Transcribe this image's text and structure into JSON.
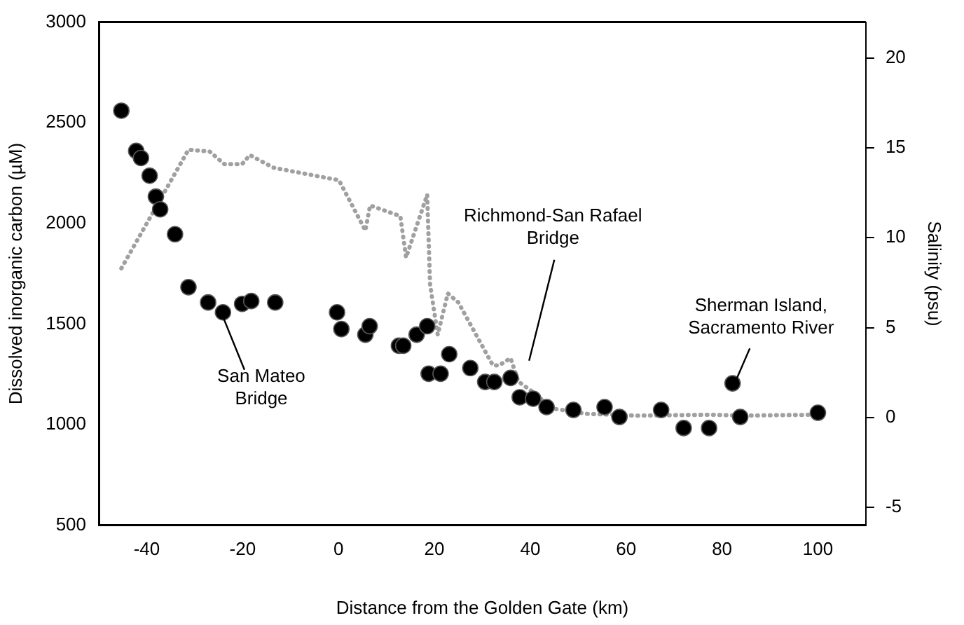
{
  "chart_data": {
    "type": "scatter",
    "xlabel": "Distance from the Golden Gate (km)",
    "ylabel": "Dissolved inorganic carbon (µM)",
    "y2label": "Salinity (psu)",
    "xlim": [
      -50,
      110
    ],
    "xticks": [
      -40,
      -20,
      0,
      20,
      40,
      60,
      80,
      100
    ],
    "ylim": [
      500,
      3000
    ],
    "yticks": [
      500,
      1000,
      1500,
      2000,
      2500,
      3000
    ],
    "y2lim": [
      -6,
      22
    ],
    "y2ticks": [
      -5,
      0,
      5,
      10,
      15,
      20
    ],
    "grid": false,
    "legend": false,
    "series": [
      {
        "type": "scatter",
        "color": "#000000",
        "marker": "circle",
        "x": [
          -45.3,
          -42.2,
          -41.2,
          -39.4,
          -38.1,
          -37.2,
          -34.1,
          -31.3,
          -27.2,
          -24.1,
          -20.1,
          -18.2,
          -13.2,
          -0.3,
          0.6,
          5.6,
          6.5,
          12.6,
          13.5,
          16.3,
          18.5,
          18.8,
          21.3,
          23.1,
          27.5,
          30.6,
          32.5,
          35.9,
          37.8,
          40.6,
          43.4,
          49,
          55.5,
          58.6,
          67.3,
          72,
          77.3,
          82.2,
          83.8,
          100
        ],
        "values": [
          2560,
          2360,
          2325,
          2237,
          2133,
          2070,
          1946,
          1683,
          1607,
          1558,
          1600,
          1614,
          1607,
          1558,
          1475,
          1447,
          1489,
          1392,
          1392,
          1447,
          1489,
          1253,
          1253,
          1350,
          1281,
          1212,
          1212,
          1232,
          1136,
          1129,
          1087,
          1073,
          1087,
          1038,
          1073,
          983,
          983,
          1205,
          1038,
          1059
        ]
      },
      {
        "type": "line",
        "axis": "y2",
        "color": "#a0a0a0",
        "marker": "none",
        "line_style": "dotted",
        "x": [
          -45.3,
          -31.3,
          -26.9,
          -23.8,
          -20.1,
          -18.5,
          -13.6,
          0.1,
          5.6,
          6.6,
          12.9,
          14.1,
          18.5,
          19.1,
          20.7,
          22.8,
          25,
          32.2,
          33.5,
          35.9,
          37.5,
          40.6,
          44.6,
          51.8,
          62.3,
          77.9,
          84.1,
          99.7
        ],
        "values": [
          8.3,
          14.9,
          14.8,
          14.1,
          14.1,
          14.6,
          13.9,
          13.2,
          10.4,
          11.8,
          11.2,
          8.9,
          12.4,
          7.4,
          4.6,
          6.9,
          6.4,
          2.9,
          2.9,
          3.3,
          2.0,
          1.4,
          0.5,
          0.2,
          0.1,
          0.15,
          0.1,
          0.15
        ]
      }
    ],
    "annotations": [
      {
        "text": "San Mateo\nBridge",
        "x": -24,
        "y": 1530
      },
      "Richmond-San Rafael\nBridge",
      {
        "text": "Sherman Island,\nSacramento River",
        "x": 82,
        "y": 1170
      }
    ]
  }
}
